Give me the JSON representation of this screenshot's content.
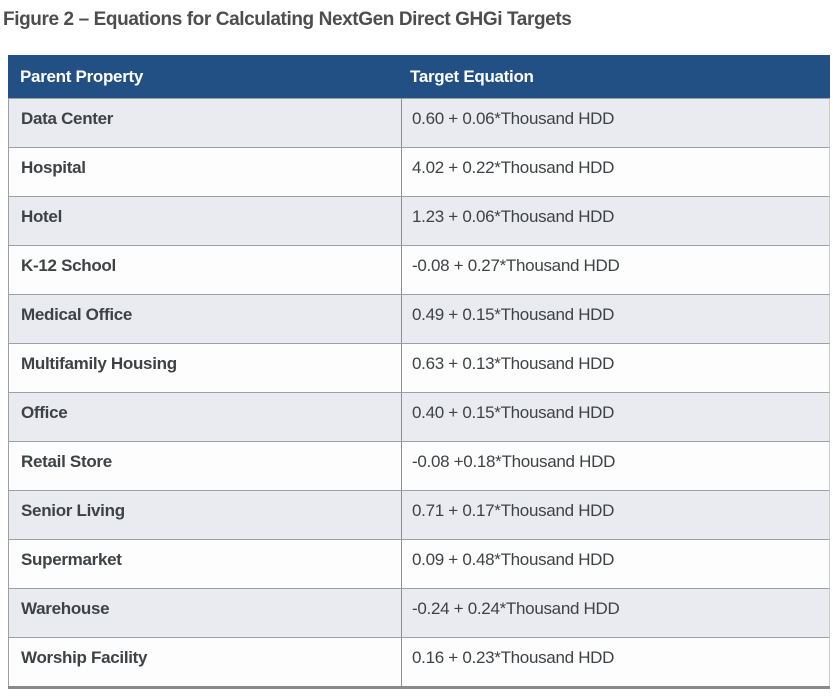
{
  "title": "Figure 2 – Equations for Calculating NextGen Direct GHGi Targets",
  "table": {
    "columns": {
      "property": "Parent Property",
      "equation": "Target Equation"
    },
    "rows": [
      {
        "property": "Data Center",
        "equation": "0.60 + 0.06*Thousand HDD"
      },
      {
        "property": "Hospital",
        "equation": "4.02 + 0.22*Thousand HDD"
      },
      {
        "property": "Hotel",
        "equation": "1.23 + 0.06*Thousand HDD"
      },
      {
        "property": "K-12 School",
        "equation": "-0.08 + 0.27*Thousand HDD"
      },
      {
        "property": "Medical Office",
        "equation": "0.49 + 0.15*Thousand HDD"
      },
      {
        "property": "Multifamily Housing",
        "equation": "0.63 + 0.13*Thousand HDD"
      },
      {
        "property": "Office",
        "equation": "0.40 + 0.15*Thousand HDD"
      },
      {
        "property": "Retail Store",
        "equation": "-0.08 +0.18*Thousand HDD"
      },
      {
        "property": "Senior Living",
        "equation": "0.71 + 0.17*Thousand HDD"
      },
      {
        "property": "Supermarket",
        "equation": "0.09 + 0.48*Thousand HDD"
      },
      {
        "property": "Warehouse",
        "equation": "-0.24 + 0.24*Thousand HDD"
      },
      {
        "property": "Worship Facility",
        "equation": "0.16 + 0.23*Thousand HDD"
      }
    ]
  },
  "colors": {
    "header_bg": "#235084",
    "header_text": "#ffffff",
    "row_bg": "#fdfdfd",
    "row_alt_bg": "#e9ebf0",
    "cell_text": "#3f4245",
    "title_text": "#4d4d4d",
    "grid_border": "#9aa0a6",
    "bottom_bar": "#8a8a8a"
  }
}
